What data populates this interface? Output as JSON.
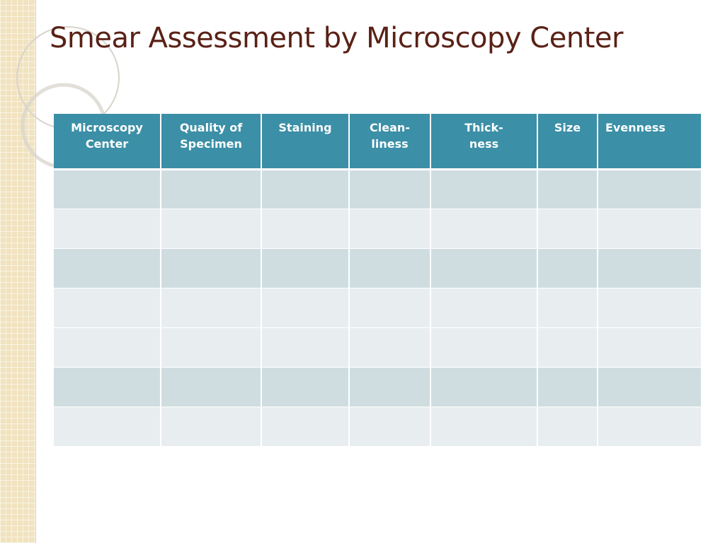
{
  "slide": {
    "title": "Smear Assessment by Microscopy Center"
  },
  "table": {
    "headers": [
      "Microscopy\nCenter",
      "Quality of\nSpecimen",
      "Staining",
      "Clean-\nliness",
      "Thick-\nness",
      "Size",
      "Evenness"
    ],
    "rows": [
      [
        "",
        "",
        "",
        "",
        "",
        "",
        ""
      ],
      [
        "",
        "",
        "",
        "",
        "",
        "",
        ""
      ],
      [
        "",
        "",
        "",
        "",
        "",
        "",
        ""
      ],
      [
        "",
        "",
        "",
        "",
        "",
        "",
        ""
      ],
      [
        "",
        "",
        "",
        "",
        "",
        "",
        ""
      ],
      [
        "",
        "",
        "",
        "",
        "",
        "",
        ""
      ],
      [
        "",
        "",
        "",
        "",
        "",
        "",
        ""
      ]
    ]
  },
  "theme": {
    "title_color": "#5a2116",
    "header_bg": "#3b8fa6",
    "row_dark": "#cfdde1",
    "row_light": "#e8eef0",
    "side_band": "#f1e3bf"
  }
}
